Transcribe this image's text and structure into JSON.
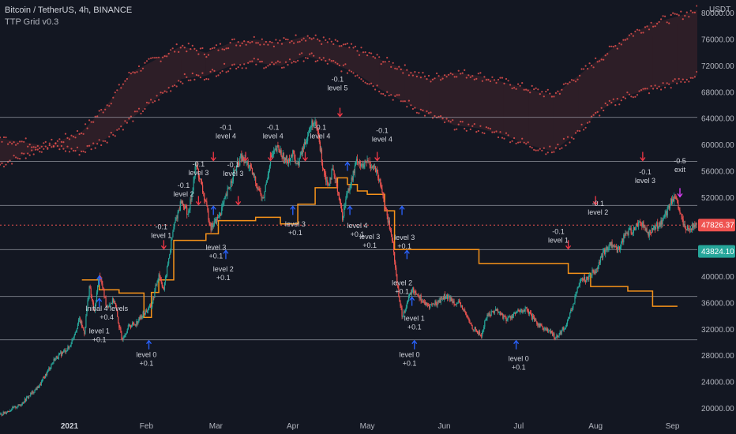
{
  "header": {
    "title": "Bitcoin / TetherUS, 4h, BINANCE",
    "indicator": "TTP Grid v0.3"
  },
  "colors": {
    "background": "#131722",
    "bull": "#26a69a",
    "bear": "#ef5350",
    "grid_line": "#b2b5be",
    "step_line": "#f7931a",
    "buy_arrow": "#2962ff",
    "sell_arrow": "#f23645",
    "exit_arrow": "#e040fb",
    "badge_last": "#ef5350",
    "badge_level": "#26a69a"
  },
  "chart_data": {
    "type": "candlestick",
    "title": "Bitcoin / TetherUS, 4h, BINANCE",
    "price_axis_unit": "USDT",
    "y_ticks": [
      20000,
      24000,
      28000,
      32000,
      36000,
      40000,
      44000,
      48000,
      52000,
      56000,
      60000,
      64000,
      68000,
      72000,
      76000,
      80000
    ],
    "y_tick_labels": [
      "20000.00",
      "24000.00",
      "28000.00",
      "32000.00",
      "36000.00",
      "40000.00",
      "44000.00",
      "48000.00",
      "52000.00",
      "56000.00",
      "60000.00",
      "64000.00",
      "68000.00",
      "72000.00",
      "76000.00",
      "80000.00"
    ],
    "ylim": [
      18500,
      82000
    ],
    "x_ticks": [
      "2021",
      "Feb",
      "Mar",
      "Apr",
      "May",
      "Jun",
      "Jul",
      "Aug",
      "Sep"
    ],
    "xlim_days": [
      -28,
      253
    ],
    "x_tick_days": [
      0,
      31,
      59,
      90,
      120,
      151,
      181,
      212,
      243
    ],
    "grid_levels": [
      30400,
      37000,
      44100,
      50800,
      57500,
      64200
    ],
    "last_price_badge": "47826.37",
    "last_price": 47826.37,
    "level_badge": "43824.10",
    "level_badge_value": 43824.1,
    "price_path": [
      [
        -28,
        19000
      ],
      [
        -20,
        20500
      ],
      [
        -12,
        23500
      ],
      [
        -6,
        27500
      ],
      [
        0,
        29300
      ],
      [
        4,
        33500
      ],
      [
        6,
        31500
      ],
      [
        8,
        38500
      ],
      [
        10,
        34500
      ],
      [
        12,
        40500
      ],
      [
        15,
        35500
      ],
      [
        18,
        36500
      ],
      [
        21,
        30500
      ],
      [
        24,
        32500
      ],
      [
        27,
        33000
      ],
      [
        30,
        34500
      ],
      [
        33,
        35500
      ],
      [
        36,
        40500
      ],
      [
        38,
        38000
      ],
      [
        42,
        47500
      ],
      [
        45,
        51500
      ],
      [
        48,
        49500
      ],
      [
        51,
        57000
      ],
      [
        54,
        52500
      ],
      [
        57,
        47500
      ],
      [
        60,
        49000
      ],
      [
        63,
        52000
      ],
      [
        66,
        55500
      ],
      [
        69,
        58000
      ],
      [
        72,
        57000
      ],
      [
        75,
        54500
      ],
      [
        78,
        51500
      ],
      [
        81,
        58000
      ],
      [
        84,
        59500
      ],
      [
        87,
        57500
      ],
      [
        90,
        58500
      ],
      [
        92,
        57000
      ],
      [
        95,
        60500
      ],
      [
        98,
        63500
      ],
      [
        100,
        62000
      ],
      [
        102,
        57000
      ],
      [
        104,
        54000
      ],
      [
        106,
        56000
      ],
      [
        108,
        53500
      ],
      [
        110,
        49000
      ],
      [
        112,
        53000
      ],
      [
        114,
        55000
      ],
      [
        116,
        58000
      ],
      [
        118,
        56500
      ],
      [
        120,
        57500
      ],
      [
        123,
        56500
      ],
      [
        126,
        53000
      ],
      [
        128,
        49000
      ],
      [
        130,
        46000
      ],
      [
        132,
        39000
      ],
      [
        134,
        34000
      ],
      [
        136,
        36000
      ],
      [
        138,
        38000
      ],
      [
        140,
        37500
      ],
      [
        144,
        35500
      ],
      [
        148,
        36000
      ],
      [
        151,
        37000
      ],
      [
        154,
        36500
      ],
      [
        158,
        35500
      ],
      [
        162,
        32500
      ],
      [
        166,
        31000
      ],
      [
        168,
        34000
      ],
      [
        172,
        35000
      ],
      [
        176,
        33500
      ],
      [
        180,
        34500
      ],
      [
        184,
        35000
      ],
      [
        188,
        33000
      ],
      [
        192,
        32000
      ],
      [
        196,
        30800
      ],
      [
        200,
        32500
      ],
      [
        204,
        37000
      ],
      [
        206,
        40000
      ],
      [
        208,
        39500
      ],
      [
        210,
        40500
      ],
      [
        212,
        41000
      ],
      [
        215,
        43500
      ],
      [
        218,
        45000
      ],
      [
        221,
        44000
      ],
      [
        224,
        46500
      ],
      [
        227,
        47000
      ],
      [
        230,
        48500
      ],
      [
        233,
        46500
      ],
      [
        236,
        47500
      ],
      [
        239,
        48500
      ],
      [
        241,
        50000
      ],
      [
        243,
        52000
      ],
      [
        245,
        51000
      ],
      [
        248,
        47000
      ],
      [
        250,
        47500
      ],
      [
        253,
        47800
      ]
    ],
    "ema_upper": [
      [
        -28,
        57000
      ],
      [
        5,
        62000
      ],
      [
        15,
        66000
      ],
      [
        25,
        71000
      ],
      [
        35,
        73000
      ],
      [
        45,
        75000
      ],
      [
        55,
        74000
      ],
      [
        65,
        75500
      ],
      [
        75,
        76000
      ],
      [
        85,
        75500
      ],
      [
        95,
        76500
      ],
      [
        105,
        75500
      ],
      [
        115,
        74500
      ],
      [
        125,
        73000
      ],
      [
        135,
        71500
      ],
      [
        145,
        70000
      ],
      [
        155,
        71000
      ],
      [
        165,
        70500
      ],
      [
        175,
        69500
      ],
      [
        185,
        68500
      ],
      [
        195,
        67500
      ],
      [
        205,
        70500
      ],
      [
        215,
        73500
      ],
      [
        225,
        76500
      ],
      [
        235,
        78500
      ],
      [
        245,
        79500
      ],
      [
        253,
        80500
      ]
    ],
    "ema_lower": [
      [
        -28,
        61000
      ],
      [
        5,
        59000
      ],
      [
        15,
        61000
      ],
      [
        25,
        64000
      ],
      [
        35,
        67000
      ],
      [
        45,
        70000
      ],
      [
        55,
        70500
      ],
      [
        65,
        72000
      ],
      [
        75,
        72500
      ],
      [
        85,
        72000
      ],
      [
        95,
        73500
      ],
      [
        105,
        72500
      ],
      [
        115,
        71000
      ],
      [
        125,
        68500
      ],
      [
        135,
        66500
      ],
      [
        145,
        64500
      ],
      [
        155,
        63000
      ],
      [
        165,
        62500
      ],
      [
        175,
        61500
      ],
      [
        185,
        60000
      ],
      [
        195,
        59000
      ],
      [
        205,
        62000
      ],
      [
        215,
        65500
      ],
      [
        225,
        67500
      ],
      [
        235,
        68500
      ],
      [
        245,
        69500
      ],
      [
        253,
        70500
      ]
    ],
    "step_series": [
      [
        5,
        39500
      ],
      [
        12,
        39500
      ],
      [
        12,
        38000
      ],
      [
        20,
        38000
      ],
      [
        20,
        37500
      ],
      [
        30,
        37500
      ],
      [
        30,
        33800
      ],
      [
        33,
        33800
      ],
      [
        33,
        37600
      ],
      [
        36,
        37600
      ],
      [
        36,
        39500
      ],
      [
        42,
        39500
      ],
      [
        42,
        45500
      ],
      [
        55,
        45500
      ],
      [
        55,
        46500
      ],
      [
        60,
        46500
      ],
      [
        60,
        48500
      ],
      [
        75,
        48500
      ],
      [
        75,
        49000
      ],
      [
        85,
        49000
      ],
      [
        85,
        48000
      ],
      [
        92,
        48000
      ],
      [
        92,
        51000
      ],
      [
        99,
        51000
      ],
      [
        99,
        53500
      ],
      [
        108,
        53500
      ],
      [
        108,
        55000
      ],
      [
        112,
        55000
      ],
      [
        112,
        54000
      ],
      [
        116,
        54000
      ],
      [
        116,
        53000
      ],
      [
        120,
        53000
      ],
      [
        120,
        52500
      ],
      [
        127,
        52500
      ],
      [
        127,
        50000
      ],
      [
        131,
        50000
      ],
      [
        131,
        44100
      ],
      [
        165,
        44100
      ],
      [
        165,
        42000
      ],
      [
        201,
        42000
      ],
      [
        201,
        40500
      ],
      [
        210,
        40500
      ],
      [
        210,
        38500
      ],
      [
        225,
        38500
      ],
      [
        225,
        37800
      ],
      [
        235,
        37800
      ],
      [
        235,
        35500
      ],
      [
        245,
        35500
      ]
    ],
    "annotations": [
      {
        "kind": "buy",
        "day": 12,
        "price": 40200,
        "lines": [
          "Initial 4 levels",
          "+0.4"
        ],
        "tx": 15,
        "ty": 34800
      },
      {
        "kind": "buy",
        "day": 12,
        "price": 36800,
        "lines": [
          "level 1",
          "+0.1"
        ],
        "tx": 12,
        "ty": 31400
      },
      {
        "kind": "buy",
        "day": 32,
        "price": 30400,
        "lines": [
          "level 0",
          "+0.1"
        ],
        "tx": 31,
        "ty": 27800
      },
      {
        "kind": "sell",
        "day": 38,
        "price": 44100,
        "lines": [
          "-0.1",
          "level 1"
        ],
        "tx": 37,
        "ty": 47200
      },
      {
        "kind": "sell",
        "day": 52,
        "price": 50800,
        "lines": [
          "-0.1",
          "level 2"
        ],
        "tx": 46,
        "ty": 53500
      },
      {
        "kind": "sell",
        "day": 58,
        "price": 57500,
        "lines": [
          "-0.1",
          "level 3"
        ],
        "tx": 52,
        "ty": 56700
      },
      {
        "kind": "buy",
        "day": 58,
        "price": 50800,
        "lines": [
          "level 3",
          "+0.1"
        ],
        "tx": 59,
        "ty": 44100
      },
      {
        "kind": "buy",
        "day": 63,
        "price": 44100,
        "lines": [
          "level 2",
          "+0.1"
        ],
        "tx": 62,
        "ty": 40800
      },
      {
        "kind": "sell",
        "day": 68,
        "price": 50800,
        "lines": [
          "-0.1",
          "level 3"
        ],
        "tx": 66,
        "ty": 56600
      },
      {
        "kind": "sell",
        "day": 71,
        "price": 57500,
        "lines": [
          "-0.1",
          "level 4"
        ],
        "tx": 63,
        "ty": 62300
      },
      {
        "kind": "sell",
        "day": 81,
        "price": 57500,
        "lines": [
          "-0.1",
          "level 4"
        ],
        "tx": 82,
        "ty": 62300
      },
      {
        "kind": "buy",
        "day": 90,
        "price": 50800,
        "lines": [
          "level 3",
          "+0.1"
        ],
        "tx": 91,
        "ty": 47600
      },
      {
        "kind": "sell",
        "day": 95,
        "price": 57500,
        "lines": [
          "-0.1",
          "level 4"
        ],
        "tx": 101,
        "ty": 62300
      },
      {
        "kind": "sell",
        "day": 109,
        "price": 64200,
        "lines": [
          "-0.1",
          "level 5"
        ],
        "tx": 108,
        "ty": 69600
      },
      {
        "kind": "buy",
        "day": 112,
        "price": 57500,
        "lines": [
          "level 4",
          "+0.1"
        ],
        "tx": 116,
        "ty": 47400
      },
      {
        "kind": "buy",
        "day": 113,
        "price": 50800,
        "lines": [
          "level 3",
          "+0.1"
        ],
        "tx": 121,
        "ty": 45700
      },
      {
        "kind": "sell",
        "day": 124,
        "price": 57500,
        "lines": [
          "-0.1",
          "level 4"
        ],
        "tx": 126,
        "ty": 61800
      },
      {
        "kind": "buy",
        "day": 134,
        "price": 50800,
        "lines": [
          "level 3",
          "+0.1"
        ],
        "tx": 135,
        "ty": 45600
      },
      {
        "kind": "buy",
        "day": 136,
        "price": 44100,
        "lines": [
          "level 2",
          "+0.1"
        ],
        "tx": 134,
        "ty": 38700
      },
      {
        "kind": "buy",
        "day": 138,
        "price": 37000,
        "lines": [
          "level 1",
          "+0.1"
        ],
        "tx": 139,
        "ty": 33300
      },
      {
        "kind": "buy",
        "day": 139,
        "price": 30400,
        "lines": [
          "level 0",
          "+0.1"
        ],
        "tx": 137,
        "ty": 27800
      },
      {
        "kind": "buy",
        "day": 180,
        "price": 30400,
        "lines": [
          "level 0",
          "+0.1"
        ],
        "tx": 181,
        "ty": 27200
      },
      {
        "kind": "sell",
        "day": 201,
        "price": 44100,
        "lines": [
          "-0.1",
          "level 1"
        ],
        "tx": 197,
        "ty": 46500
      },
      {
        "kind": "sell",
        "day": 212,
        "price": 50800,
        "lines": [
          "-0.1",
          "level 2"
        ],
        "tx": 213,
        "ty": 50700
      },
      {
        "kind": "sell",
        "day": 231,
        "price": 57500,
        "lines": [
          "-0.1",
          "level 3"
        ],
        "tx": 232,
        "ty": 55500
      },
      {
        "kind": "exit",
        "day": 246,
        "price": 52000,
        "lines": [
          "-0.5",
          "exit"
        ],
        "tx": 246,
        "ty": 57200
      }
    ]
  }
}
